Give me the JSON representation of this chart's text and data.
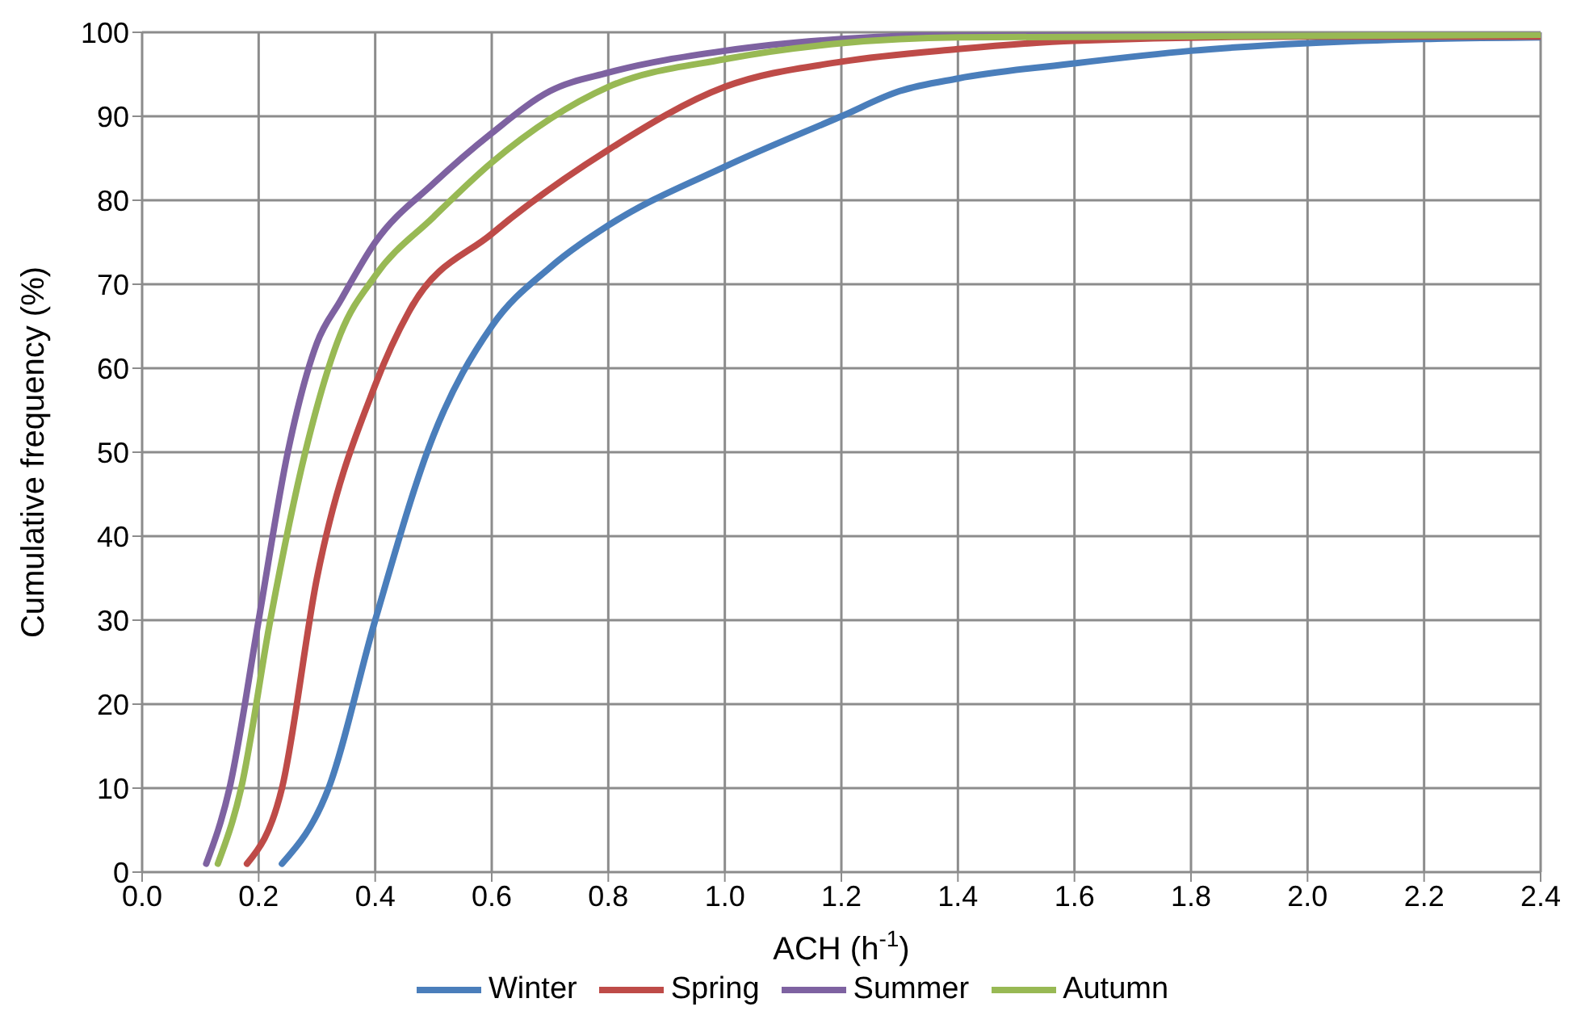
{
  "chart_data": {
    "type": "line",
    "xlabel": "ACH (h$^{-1}$)",
    "ylabel": "Cumulative frequency (%)",
    "xlim": [
      0,
      2.4
    ],
    "ylim": [
      0,
      100
    ],
    "xticks": [
      {
        "value": 0,
        "label": "0.0"
      },
      {
        "value": 0.2,
        "label": "0.2"
      },
      {
        "value": 0.4,
        "label": "0.4"
      },
      {
        "value": 0.6,
        "label": "0.6"
      },
      {
        "value": 0.8,
        "label": "0.8"
      },
      {
        "value": 1,
        "label": "1.0"
      },
      {
        "value": 1.2,
        "label": "1.2"
      },
      {
        "value": 1.4,
        "label": "1.4"
      },
      {
        "value": 1.6,
        "label": "1.6"
      },
      {
        "value": 1.8,
        "label": "1.8"
      },
      {
        "value": 2,
        "label": "2.0"
      },
      {
        "value": 2.2,
        "label": "2.2"
      },
      {
        "value": 2.4,
        "label": "2.4"
      }
    ],
    "yticks": [
      0,
      10,
      20,
      30,
      40,
      50,
      60,
      70,
      80,
      90,
      100
    ],
    "grid": true,
    "legend": "bottom",
    "marker": "none",
    "line_style": "solid",
    "series": [
      {
        "name": "Winter",
        "color": "#4a7ebb",
        "x": [
          0.24,
          0.32,
          0.4,
          0.5,
          0.6,
          0.7,
          0.8,
          1.0,
          1.2,
          1.3,
          1.4,
          1.6,
          1.8,
          2.0,
          2.2,
          2.4
        ],
        "values": [
          1,
          10,
          30,
          52,
          65,
          72,
          77,
          84,
          90,
          93,
          94.5,
          96.3,
          97.8,
          98.7,
          99.2,
          99.4
        ]
      },
      {
        "name": "Spring",
        "color": "#be4b48",
        "x": [
          0.18,
          0.24,
          0.3,
          0.4,
          0.46,
          0.6,
          0.8,
          1.0,
          1.2,
          1.4,
          1.6,
          2.0,
          2.4
        ],
        "values": [
          1,
          10,
          35,
          58,
          67,
          76,
          86,
          93.5,
          96.5,
          98,
          99,
          99.5,
          99.5
        ]
      },
      {
        "name": "Summer",
        "color": "#7e62a1",
        "x": [
          0.11,
          0.15,
          0.2,
          0.25,
          0.3,
          0.34,
          0.4,
          0.5,
          0.6,
          0.7,
          0.8,
          1.0,
          1.2,
          1.4,
          2.4
        ],
        "values": [
          1,
          10,
          30,
          50,
          63,
          68,
          75,
          82,
          88,
          93,
          95.2,
          97.8,
          99.2,
          99.7,
          99.7
        ]
      },
      {
        "name": "Autumn",
        "color": "#98b954",
        "x": [
          0.13,
          0.17,
          0.22,
          0.28,
          0.34,
          0.4,
          0.5,
          0.6,
          0.8,
          1.0,
          1.2,
          1.4,
          2.4
        ],
        "values": [
          1,
          10,
          30,
          50,
          64,
          71,
          78,
          84.5,
          93.5,
          96.8,
          98.7,
          99.4,
          99.7
        ]
      }
    ]
  }
}
